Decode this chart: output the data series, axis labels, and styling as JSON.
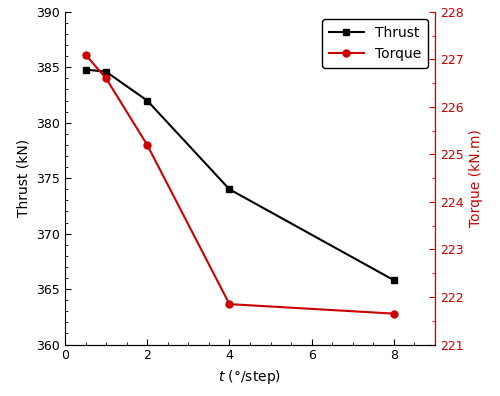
{
  "x": [
    0.5,
    1,
    2,
    4,
    8
  ],
  "thrust": [
    384.8,
    384.6,
    382.0,
    374.0,
    365.8
  ],
  "torque": [
    227.1,
    226.6,
    225.2,
    221.85,
    221.65
  ],
  "thrust_color": "#000000",
  "torque_color": "#cc0000",
  "xlabel_italic": "t",
  "xlabel_normal": " (°/step)",
  "ylabel_left": "Thrust (kN)",
  "ylabel_right": "Torque (kN.m)",
  "xlim": [
    0,
    9
  ],
  "ylim_left": [
    360,
    390
  ],
  "ylim_right": [
    221,
    228
  ],
  "xticks": [
    0,
    2,
    4,
    6,
    8
  ],
  "yticks_left": [
    360,
    365,
    370,
    375,
    380,
    385,
    390
  ],
  "yticks_right": [
    221,
    222,
    223,
    224,
    225,
    226,
    227,
    228
  ],
  "legend_labels": [
    "Thrust",
    "Torque"
  ],
  "marker_thrust": "s",
  "marker_torque": "o",
  "linewidth": 1.5,
  "markersize": 5,
  "tick_fontsize": 9,
  "label_fontsize": 10,
  "legend_fontsize": 10
}
